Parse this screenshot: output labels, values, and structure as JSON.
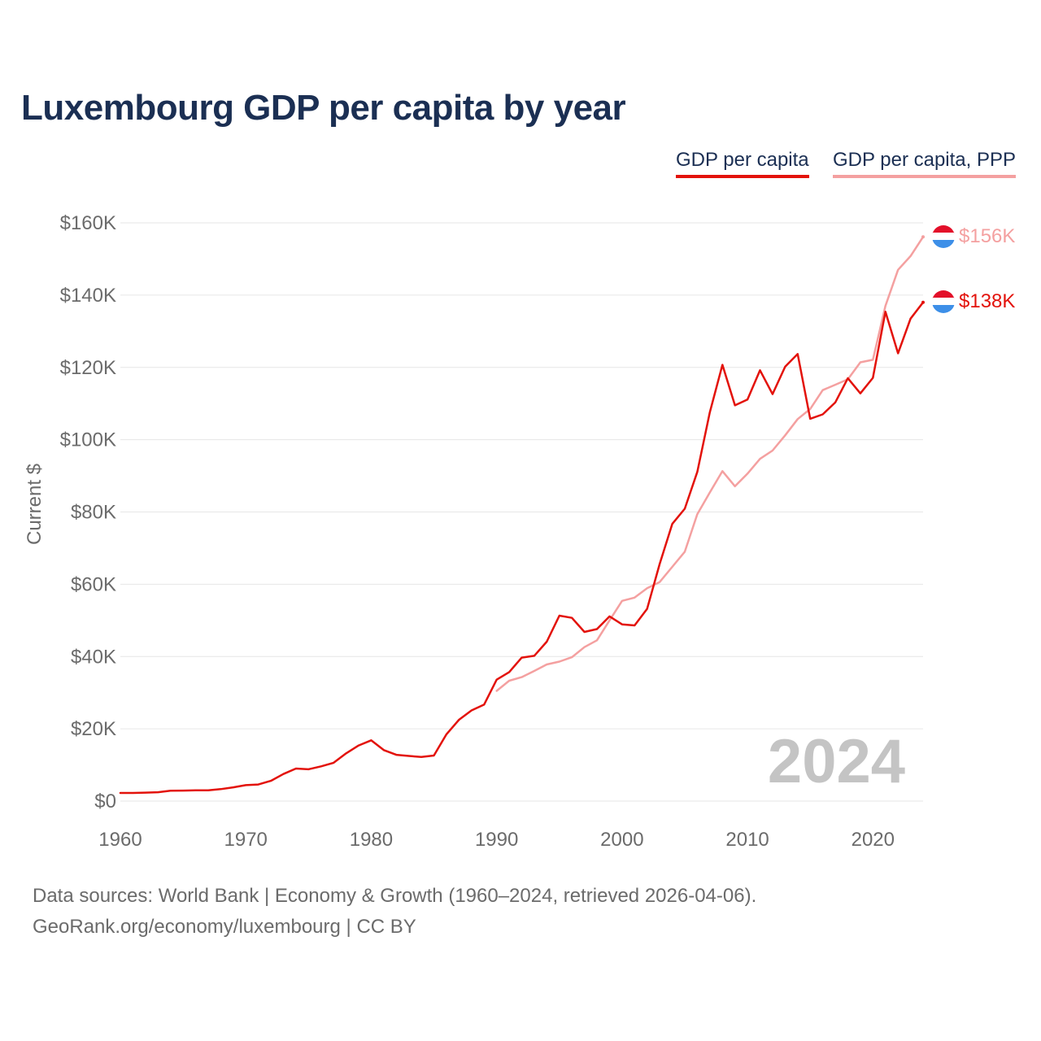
{
  "title": "Luxembourg GDP per capita by year",
  "legend": {
    "gdp": "GDP per capita",
    "ppp": "GDP per capita, PPP"
  },
  "colors": {
    "gdp": "#e3120b",
    "ppp": "#f4a0a0",
    "title": "#1b2f53",
    "axis_text": "#6b6b6b",
    "year_watermark": "#c4c4c4"
  },
  "footer": {
    "source": "Data sources: World Bank | Economy & Growth (1960–2024, retrieved 2026-04-06).",
    "credit": "GeoRank.org/economy/luxembourg | CC BY"
  },
  "chart_data": {
    "type": "line",
    "title": "Luxembourg GDP per capita by year",
    "xlabel": "",
    "ylabel": "Current $",
    "xlim": [
      1960,
      2024
    ],
    "ylim": [
      0,
      160000
    ],
    "x_ticks": [
      1960,
      1970,
      1980,
      1990,
      2000,
      2010,
      2020
    ],
    "y_ticks": [
      0,
      20000,
      40000,
      60000,
      80000,
      100000,
      120000,
      140000,
      160000
    ],
    "y_tick_labels": [
      "$0",
      "$20K",
      "$40K",
      "$60K",
      "$80K",
      "$100K",
      "$120K",
      "$140K",
      "$160K"
    ],
    "grid": true,
    "year_label": "2024",
    "end_labels": {
      "gdp": "$138K",
      "ppp": "$156K"
    },
    "series": [
      {
        "name": "GDP per capita",
        "key": "gdp",
        "x": [
          1960,
          1961,
          1962,
          1963,
          1964,
          1965,
          1966,
          1967,
          1968,
          1969,
          1970,
          1971,
          1972,
          1973,
          1974,
          1975,
          1976,
          1977,
          1978,
          1979,
          1980,
          1981,
          1982,
          1983,
          1984,
          1985,
          1986,
          1987,
          1988,
          1989,
          1990,
          1991,
          1992,
          1993,
          1994,
          1995,
          1996,
          1997,
          1998,
          1999,
          2000,
          2001,
          2002,
          2003,
          2004,
          2005,
          2006,
          2007,
          2008,
          2009,
          2010,
          2011,
          2012,
          2013,
          2014,
          2015,
          2016,
          2017,
          2018,
          2019,
          2020,
          2021,
          2022,
          2023,
          2024
        ],
        "values": [
          2250,
          2250,
          2350,
          2450,
          2850,
          2900,
          3000,
          3000,
          3300,
          3800,
          4400,
          4600,
          5600,
          7500,
          9000,
          8800,
          9600,
          10600,
          13200,
          15400,
          16800,
          14100,
          12800,
          12500,
          12200,
          12600,
          18500,
          22500,
          25100,
          26700,
          33600,
          35700,
          39700,
          40200,
          44100,
          51300,
          50700,
          46800,
          47600,
          51100,
          48900,
          48600,
          53200,
          65600,
          76700,
          80900,
          91100,
          107600,
          120700,
          109500,
          111100,
          119200,
          112600,
          120200,
          123700,
          105800,
          107000,
          110300,
          117000,
          112800,
          117100,
          135400,
          123900,
          133500,
          138000
        ]
      },
      {
        "name": "GDP per capita, PPP",
        "key": "ppp",
        "x": [
          1990,
          1991,
          1992,
          1993,
          1994,
          1995,
          1996,
          1997,
          1998,
          1999,
          2000,
          2001,
          2002,
          2003,
          2004,
          2005,
          2006,
          2007,
          2008,
          2009,
          2010,
          2011,
          2012,
          2013,
          2014,
          2015,
          2016,
          2017,
          2018,
          2019,
          2020,
          2021,
          2022,
          2023,
          2024
        ],
        "values": [
          30500,
          33300,
          34300,
          36000,
          37800,
          38600,
          39800,
          42600,
          44500,
          50000,
          55400,
          56300,
          58900,
          60600,
          64800,
          69000,
          79400,
          85400,
          91300,
          87100,
          90600,
          94700,
          97000,
          101200,
          105700,
          108500,
          113700,
          115200,
          116700,
          121400,
          122100,
          137000,
          147000,
          150800,
          156100
        ]
      }
    ]
  }
}
